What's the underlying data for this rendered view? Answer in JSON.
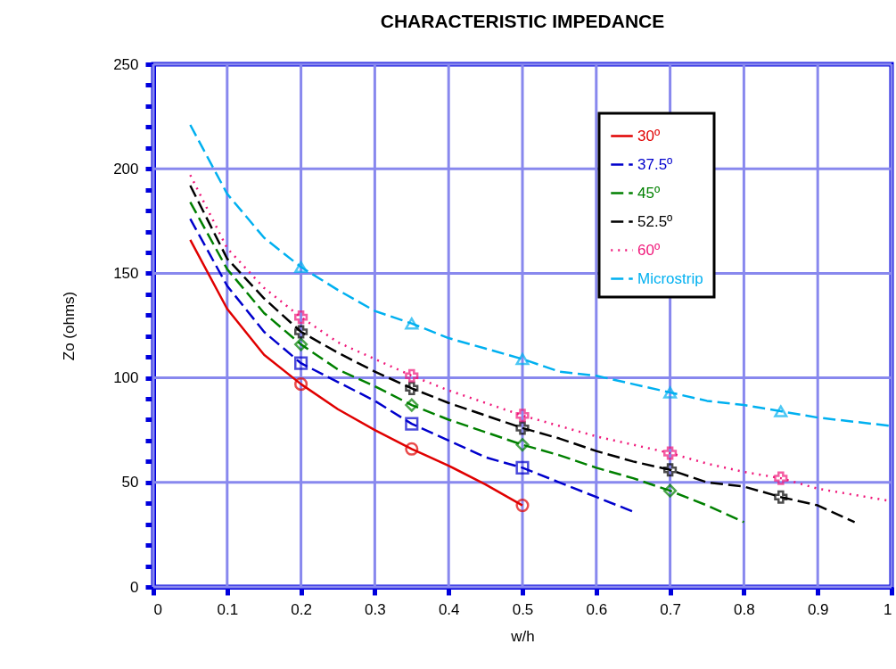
{
  "chart_data": {
    "type": "line",
    "title": "CHARACTERISTIC IMPEDANCE",
    "xlabel": "w/h",
    "ylabel": "Zo (ohms)",
    "xlim": [
      0,
      1
    ],
    "xticks": [
      0,
      0.1,
      0.2,
      0.3,
      0.4,
      0.5,
      0.6,
      0.7,
      0.8,
      0.9,
      1
    ],
    "ylim": [
      0,
      250
    ],
    "yticks": [
      0,
      {
        "value": 10,
        "label": null
      },
      {
        "value": 20,
        "label": null
      },
      {
        "value": 30,
        "label": null
      },
      {
        "value": 40,
        "label": null
      },
      50,
      {
        "value": 60,
        "label": null
      },
      {
        "value": 70,
        "label": null
      },
      {
        "value": 80,
        "label": null
      },
      {
        "value": 90,
        "label": null
      },
      100,
      {
        "value": 110,
        "label": null
      },
      {
        "value": 120,
        "label": null
      },
      {
        "value": 130,
        "label": null
      },
      {
        "value": 140,
        "label": null
      },
      150,
      {
        "value": 160,
        "label": null
      },
      {
        "value": 170,
        "label": null
      },
      {
        "value": 180,
        "label": null
      },
      {
        "value": 190,
        "label": null
      },
      200,
      {
        "value": 210,
        "label": null
      },
      {
        "value": 220,
        "label": null
      },
      {
        "value": 230,
        "label": null
      },
      {
        "value": 240,
        "label": null
      },
      250
    ],
    "grid": true,
    "legend": "top right",
    "series": [
      {
        "name": "30º",
        "line_style": "solid",
        "color": "#e00000",
        "x": [
          0.05,
          0.1,
          0.15,
          0.2,
          0.25,
          0.3,
          0.35,
          0.4,
          0.45,
          0.5
        ],
        "values": [
          166,
          133,
          111,
          97,
          85,
          75,
          66,
          58,
          49,
          39
        ]
      },
      {
        "name": "37.5º",
        "line_style": "dashed",
        "color": "#0000cc",
        "x": [
          0.05,
          0.1,
          0.15,
          0.2,
          0.25,
          0.3,
          0.35,
          0.4,
          0.45,
          0.5,
          0.55,
          0.6,
          0.65
        ],
        "values": [
          176,
          144,
          122,
          107,
          98,
          89,
          78,
          70,
          62,
          57,
          50,
          43,
          36
        ]
      },
      {
        "name": "45º",
        "line_style": "dashed",
        "color": "#008000",
        "x": [
          0.05,
          0.1,
          0.15,
          0.2,
          0.25,
          0.3,
          0.35,
          0.4,
          0.45,
          0.5,
          0.55,
          0.6,
          0.65,
          0.7,
          0.75,
          0.8
        ],
        "values": [
          184,
          152,
          131,
          116,
          104,
          96,
          87,
          80,
          74,
          68,
          63,
          57,
          52,
          46,
          39,
          31
        ]
      },
      {
        "name": "52.5º",
        "line_style": "dashed",
        "color": "#000000",
        "x": [
          0.05,
          0.1,
          0.15,
          0.2,
          0.25,
          0.3,
          0.35,
          0.4,
          0.45,
          0.5,
          0.55,
          0.6,
          0.65,
          0.7,
          0.75,
          0.8,
          0.85,
          0.9,
          0.95
        ],
        "values": [
          192,
          157,
          138,
          122,
          112,
          103,
          95,
          88,
          82,
          76,
          71,
          65,
          60,
          56,
          50,
          48,
          43,
          39,
          31
        ]
      },
      {
        "name": "60º",
        "line_style": "dotted",
        "color": "#f0187a",
        "x": [
          0.05,
          0.1,
          0.15,
          0.2,
          0.25,
          0.3,
          0.35,
          0.4,
          0.45,
          0.5,
          0.55,
          0.6,
          0.65,
          0.7,
          0.75,
          0.8,
          0.85,
          0.9,
          0.95,
          1
        ],
        "values": [
          197,
          162,
          143,
          129,
          117,
          109,
          101,
          94,
          88,
          82,
          77,
          72,
          68,
          64,
          59,
          55,
          52,
          47,
          44,
          41
        ]
      },
      {
        "name": "Microstrip",
        "line_style": "dashed",
        "color": "#00b0f0",
        "x": [
          0.05,
          0.1,
          0.15,
          0.2,
          0.25,
          0.3,
          0.35,
          0.4,
          0.45,
          0.5,
          0.55,
          0.6,
          0.65,
          0.7,
          0.75,
          0.8,
          0.85,
          0.9,
          0.95,
          1
        ],
        "values": [
          221,
          188,
          167,
          153,
          142,
          132,
          126,
          119,
          114,
          109,
          103,
          101,
          97,
          93,
          89,
          87,
          84,
          81,
          79,
          77
        ]
      },
      {
        "type": "scatter",
        "marker": "circle",
        "color": "#e00000",
        "x": [
          0.2,
          0.35,
          0.5
        ],
        "values": [
          97,
          66,
          39
        ]
      },
      {
        "type": "scatter",
        "marker": "square",
        "color": "#0000cc",
        "x": [
          0.2,
          0.35,
          0.5
        ],
        "values": [
          107,
          78,
          57
        ]
      },
      {
        "type": "scatter",
        "marker": "diamond",
        "color": "#008000",
        "x": [
          0.2,
          0.35,
          0.5,
          0.7
        ],
        "values": [
          116,
          87,
          68,
          46
        ]
      },
      {
        "type": "scatter",
        "marker": "cross",
        "color": "#000000",
        "x": [
          0.2,
          0.35,
          0.5,
          0.7,
          0.85
        ],
        "values": [
          122,
          95,
          76,
          56,
          43
        ]
      },
      {
        "type": "scatter",
        "marker": "cross",
        "color": "#f0187a",
        "x": [
          0.2,
          0.35,
          0.5,
          0.7,
          0.85
        ],
        "values": [
          129,
          101,
          82,
          64,
          52
        ]
      },
      {
        "type": "scatter",
        "marker": "triangle",
        "color": "#00b0f0",
        "x": [
          0.2,
          0.35,
          0.5,
          0.7,
          0.85
        ],
        "values": [
          153,
          126,
          109,
          93,
          84
        ]
      }
    ]
  }
}
